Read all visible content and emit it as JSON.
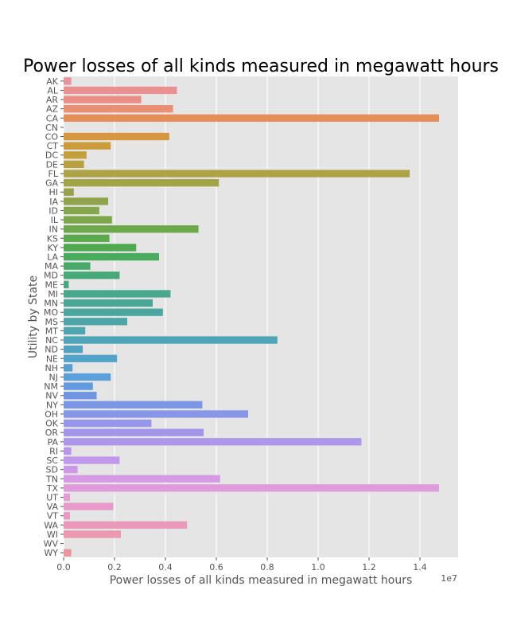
{
  "chart_data": {
    "type": "bar",
    "orientation": "horizontal",
    "title": "Power losses of all kinds measured in megawatt hours",
    "xlabel": "Power losses of all kinds measured in megawatt hours",
    "ylabel": "Utility by State",
    "x_offset_label": "1e7",
    "x_scale": 10000000,
    "xlim": [
      0,
      1.55
    ],
    "x_ticks": [
      "0.0",
      "0.2",
      "0.4",
      "0.6",
      "0.8",
      "1.0",
      "1.2",
      "1.4"
    ],
    "grid": true,
    "categories": [
      "AK",
      "AL",
      "AR",
      "AZ",
      "CA",
      "CN",
      "CO",
      "CT",
      "DC",
      "DE",
      "FL",
      "GA",
      "HI",
      "IA",
      "ID",
      "IL",
      "IN",
      "KS",
      "KY",
      "LA",
      "MA",
      "MD",
      "ME",
      "MI",
      "MN",
      "MO",
      "MS",
      "MT",
      "NC",
      "ND",
      "NE",
      "NH",
      "NJ",
      "NM",
      "NV",
      "NY",
      "OH",
      "OK",
      "OR",
      "PA",
      "RI",
      "SC",
      "SD",
      "TN",
      "TX",
      "UT",
      "VA",
      "VT",
      "WA",
      "WI",
      "WV",
      "WY"
    ],
    "values": [
      0.03,
      0.445,
      0.305,
      0.43,
      1.475,
      0.0,
      0.415,
      0.185,
      0.09,
      0.08,
      1.36,
      0.61,
      0.04,
      0.175,
      0.14,
      0.19,
      0.53,
      0.18,
      0.285,
      0.375,
      0.105,
      0.22,
      0.02,
      0.42,
      0.35,
      0.39,
      0.25,
      0.085,
      0.84,
      0.075,
      0.21,
      0.035,
      0.185,
      0.115,
      0.13,
      0.545,
      0.725,
      0.345,
      0.55,
      1.17,
      0.03,
      0.22,
      0.055,
      0.615,
      1.475,
      0.025,
      0.195,
      0.025,
      0.485,
      0.225,
      0.0,
      0.03
    ],
    "colors": [
      "#e8929e",
      "#eb9090",
      "#eb8f86",
      "#e98f74",
      "#e48f5a",
      "#dd9347",
      "#d6963d",
      "#cc9b3a",
      "#c29f3a",
      "#b9a23d",
      "#ada345",
      "#a3a348",
      "#99a14a",
      "#8fa44b",
      "#86a64b",
      "#7ca84a",
      "#6da84a",
      "#5ba94c",
      "#4ea94f",
      "#47aa5c",
      "#46aa6b",
      "#47a977",
      "#48a883",
      "#49a78d",
      "#4aa797",
      "#4ba6a0",
      "#4ca6a8",
      "#4da5b0",
      "#4ea4b8",
      "#4fa3c0",
      "#52a2c9",
      "#56a1d1",
      "#5ba0d9",
      "#6299df",
      "#6d97e3",
      "#7a96e5",
      "#8896e7",
      "#9596e9",
      "#a396ea",
      "#ae96eb",
      "#b997eb",
      "#c298ea",
      "#cb99e8",
      "#d59ae3",
      "#df9bdc",
      "#e59cd5",
      "#e89bcb",
      "#ea9ac2",
      "#eb99b9",
      "#eb98b0",
      "#ea97a6",
      "#e9969d"
    ]
  }
}
